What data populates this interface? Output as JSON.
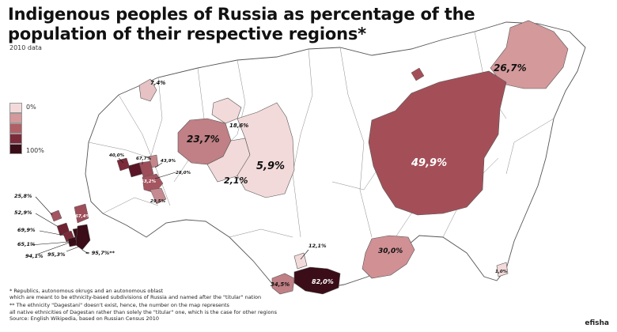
{
  "title": "Indigenous peoples of Russia as percentage of the population of their respective regions*",
  "subtitle": "2010 data",
  "legend": {
    "min_label": "0%",
    "max_label": "100%",
    "colors": [
      "#f3dada",
      "#d4999b",
      "#b05f66",
      "#7c2a3a",
      "#3a0d18"
    ]
  },
  "regions": [
    {
      "label": "26,7%"
    },
    {
      "label": "49,9%"
    },
    {
      "label": "23,7%"
    },
    {
      "label": "5,9%"
    },
    {
      "label": "2,1%"
    },
    {
      "label": "18,6%"
    },
    {
      "label": "7,4%"
    },
    {
      "label": "40,0%"
    },
    {
      "label": "67,7%"
    },
    {
      "label": "43,9%"
    },
    {
      "label": "28,0%"
    },
    {
      "label": "53,2%"
    },
    {
      "label": "29,5%"
    },
    {
      "label": "25,8%"
    },
    {
      "label": "52,9%"
    },
    {
      "label": "67,4%"
    },
    {
      "label": "69,9%"
    },
    {
      "label": "65,1%"
    },
    {
      "label": "94,1%"
    },
    {
      "label": "95,3%"
    },
    {
      "label": "≈ 95,7%**"
    },
    {
      "label": "12,1%"
    },
    {
      "label": "30,0%"
    },
    {
      "label": "34,5%"
    },
    {
      "label": "82,0%"
    },
    {
      "label": "1,0%"
    }
  ],
  "notes": {
    "note1_line1": "* Republics, autonomous okrugs and an autonomous oblast",
    "note1_line2": "which are meant to be ethnicity-based subdivisions of Russia and named after the \"titular\" nation",
    "note2_line1": "** The ethnicity \"Dagestani\" doesn't exist, hence, the number on the map represents",
    "note2_line2": "all native ethnicities of Dagestan rather than solely the \"titular\" one, which is the case for other regions",
    "source": "Source: English Wikipedia, based on Russian Census 2010"
  },
  "credit": "efisha"
}
